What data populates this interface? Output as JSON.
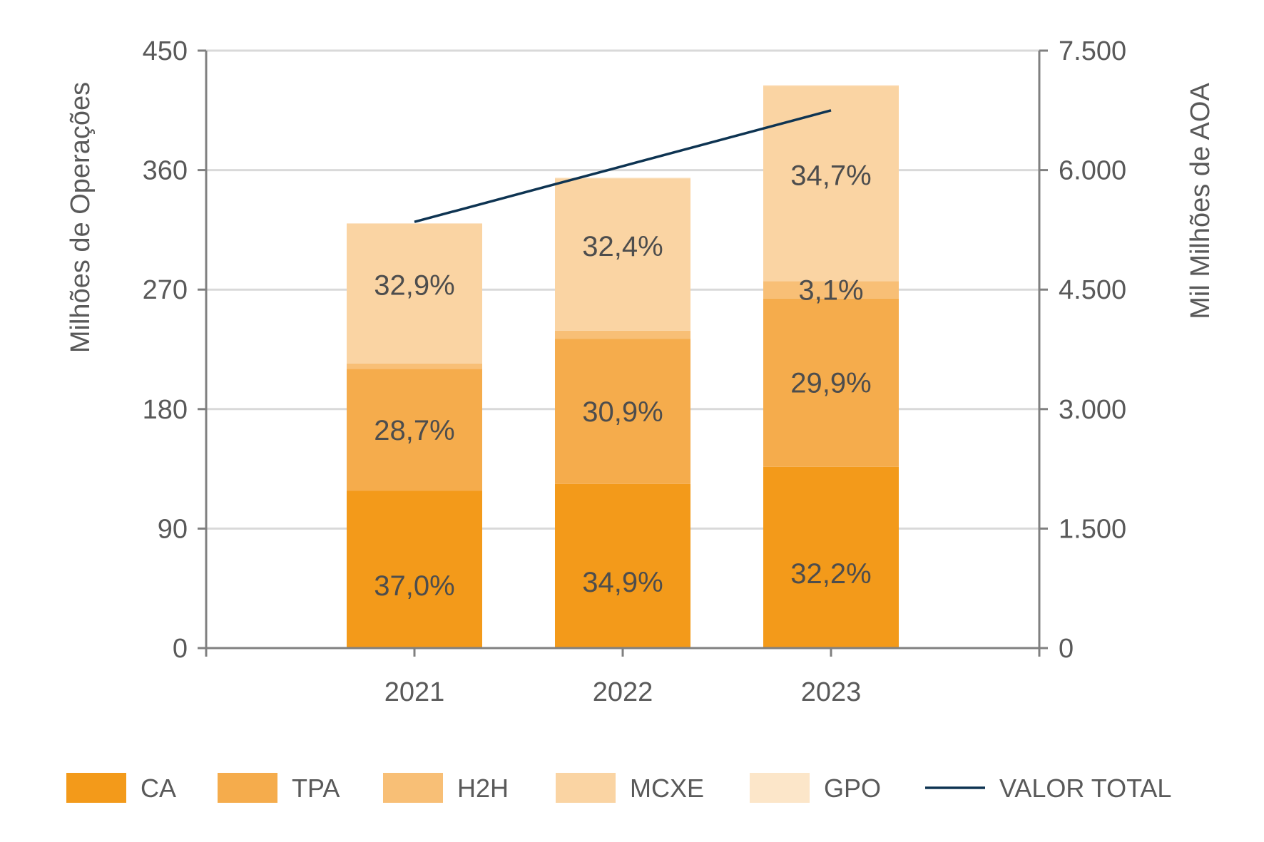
{
  "chart_data": {
    "type": "bar",
    "stacked": true,
    "categories": [
      "2021",
      "2022",
      "2023"
    ],
    "series": [
      {
        "name": "CA",
        "color": "#F39A1A",
        "values": [
          118.4,
          123.6,
          136.5
        ],
        "labels": [
          "37,0%",
          "34,9%",
          "32,2%"
        ]
      },
      {
        "name": "TPA",
        "color": "#F5AC4C",
        "values": [
          91.8,
          109.4,
          126.8
        ],
        "labels": [
          "28,7%",
          "30,9%",
          "29,9%"
        ]
      },
      {
        "name": "H2H",
        "color": "#F8BF76",
        "values": [
          4.2,
          6.0,
          13.1
        ],
        "labels": [
          "",
          "",
          "3,1%"
        ]
      },
      {
        "name": "MCXE",
        "color": "#FAD4A3",
        "values": [
          105.3,
          114.8,
          147.1
        ],
        "labels": [
          "32,9%",
          "32,4%",
          "34,7%"
        ]
      },
      {
        "name": "GPO",
        "color": "#FCE6C9",
        "values": [
          0.3,
          0.5,
          0.5
        ],
        "labels": [
          "",
          "",
          ""
        ]
      }
    ],
    "line_series": {
      "name": "VALOR TOTAL",
      "color": "#0E3452",
      "axis": "right",
      "values": [
        5350,
        6050,
        6750
      ]
    },
    "ylabel": "Milhões de Operações",
    "y2label": "Mil Milhões de AOA",
    "ylim": [
      0,
      450
    ],
    "y2lim": [
      0,
      7500
    ],
    "yticks": [
      "0",
      "90",
      "180",
      "270",
      "360",
      "450"
    ],
    "y2ticks": [
      "0",
      "1.500",
      "3.000",
      "4.500",
      "6.000",
      "7.500"
    ],
    "grid": true,
    "legend_position": "bottom"
  }
}
